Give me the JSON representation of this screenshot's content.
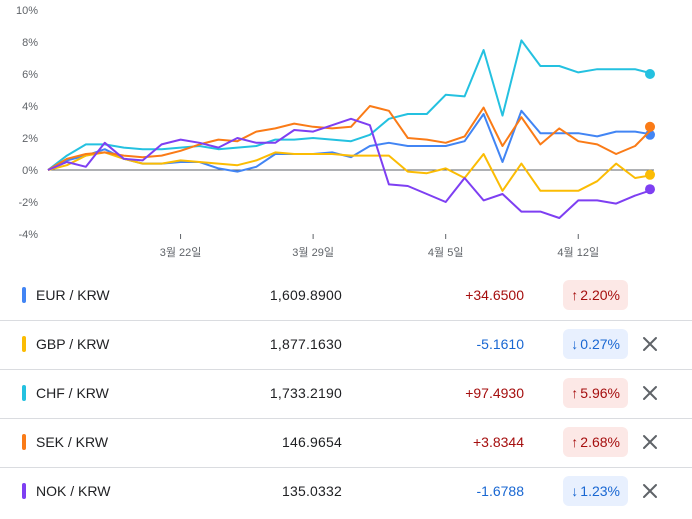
{
  "chart_data": {
    "type": "line",
    "x": [
      "3월 15일",
      "3월 16일",
      "3월 17일",
      "3월 18일",
      "3월 19일",
      "3월 20일",
      "3월 21일",
      "3월 22일",
      "3월 23일",
      "3월 24일",
      "3월 25일",
      "3월 26일",
      "3월 27일",
      "3월 28일",
      "3월 29일",
      "3월 30일",
      "3월 31일",
      "4월 1일",
      "4월 2일",
      "4월 3일",
      "4월 4일",
      "4월 5일",
      "4월 6일",
      "4월 7일",
      "4월 8일",
      "4월 9일",
      "4월 10일",
      "4월 11일",
      "4월 12일",
      "4월 13일",
      "4월 14일",
      "4월 15일",
      "4월 16일"
    ],
    "x_ticks": [
      "3월 22일",
      "3월 29일",
      "4월 5일",
      "4월 12일"
    ],
    "ylim": [
      -4,
      10
    ],
    "y_ticks": [
      -4,
      -2,
      0,
      2,
      4,
      6,
      8,
      10
    ],
    "y_tick_labels": [
      "-4%",
      "-2%",
      "0%",
      "2%",
      "4%",
      "6%",
      "8%",
      "10%"
    ],
    "zero_line": true,
    "series": [
      {
        "name": "EUR / KRW",
        "color": "#4285f4",
        "values": [
          0,
          0.6,
          0.9,
          1.3,
          0.7,
          0.4,
          0.4,
          0.5,
          0.5,
          0.1,
          -0.1,
          0.2,
          1.0,
          1.0,
          1.0,
          1.1,
          0.8,
          1.5,
          1.7,
          1.5,
          1.5,
          1.5,
          1.8,
          3.5,
          0.5,
          3.7,
          2.3,
          2.3,
          2.3,
          2.1,
          2.4,
          2.4,
          2.2
        ]
      },
      {
        "name": "GBP / KRW",
        "color": "#fbbc04",
        "values": [
          0,
          0.3,
          0.9,
          1.1,
          0.7,
          0.4,
          0.4,
          0.6,
          0.5,
          0.4,
          0.3,
          0.6,
          1.1,
          1.0,
          1.0,
          1.0,
          0.9,
          0.9,
          0.9,
          -0.1,
          -0.2,
          0.1,
          -0.5,
          1.0,
          -1.3,
          0.4,
          -1.3,
          -1.3,
          -1.3,
          -0.7,
          0.4,
          -0.5,
          -0.3
        ]
      },
      {
        "name": "CHF / KRW",
        "color": "#24c1e0",
        "values": [
          0,
          0.9,
          1.6,
          1.6,
          1.4,
          1.3,
          1.3,
          1.4,
          1.5,
          1.3,
          1.4,
          1.5,
          1.9,
          1.9,
          2.0,
          1.9,
          1.8,
          2.2,
          3.2,
          3.5,
          3.5,
          4.7,
          4.6,
          7.5,
          3.4,
          8.1,
          6.5,
          6.5,
          6.1,
          6.3,
          6.3,
          6.3,
          6.0
        ]
      },
      {
        "name": "SEK / KRW",
        "color": "#fa7b17",
        "values": [
          0,
          0.7,
          1.0,
          1.1,
          0.9,
          0.8,
          0.9,
          1.2,
          1.6,
          1.9,
          1.8,
          2.4,
          2.6,
          2.9,
          2.7,
          2.6,
          2.7,
          4.0,
          3.7,
          2.0,
          1.9,
          1.7,
          2.1,
          3.9,
          1.5,
          3.3,
          1.6,
          2.6,
          1.8,
          1.6,
          1.0,
          1.5,
          2.7
        ]
      },
      {
        "name": "NOK / KRW",
        "color": "#7e3ff2",
        "values": [
          0,
          0.5,
          0.2,
          1.7,
          0.7,
          0.6,
          1.6,
          1.9,
          1.7,
          1.4,
          2.0,
          1.7,
          1.7,
          2.5,
          2.4,
          2.8,
          3.2,
          2.8,
          -0.9,
          -1.0,
          -1.5,
          -2.0,
          -0.5,
          -1.9,
          -1.5,
          -2.6,
          -2.6,
          -3.0,
          -1.9,
          -1.9,
          -2.1,
          -1.6,
          -1.2
        ]
      }
    ]
  },
  "rows": [
    {
      "pair": "EUR / KRW",
      "color": "#4285f4",
      "price": "1,609.8900",
      "change": "+34.6500",
      "arrow": "↑",
      "percent": "2.20%",
      "direction": "up",
      "removable": false
    },
    {
      "pair": "GBP / KRW",
      "color": "#fbbc04",
      "price": "1,877.1630",
      "change": "-5.1610",
      "arrow": "↓",
      "percent": "0.27%",
      "direction": "down",
      "removable": true
    },
    {
      "pair": "CHF / KRW",
      "color": "#24c1e0",
      "price": "1,733.2190",
      "change": "+97.4930",
      "arrow": "↑",
      "percent": "5.96%",
      "direction": "up",
      "removable": true
    },
    {
      "pair": "SEK / KRW",
      "color": "#fa7b17",
      "price": "146.9654",
      "change": "+3.8344",
      "arrow": "↑",
      "percent": "2.68%",
      "direction": "up",
      "removable": true
    },
    {
      "pair": "NOK / KRW",
      "color": "#7e3ff2",
      "price": "135.0332",
      "change": "-1.6788",
      "arrow": "↓",
      "percent": "1.23%",
      "direction": "down",
      "removable": true
    }
  ],
  "icons": {
    "remove": "close-icon"
  }
}
